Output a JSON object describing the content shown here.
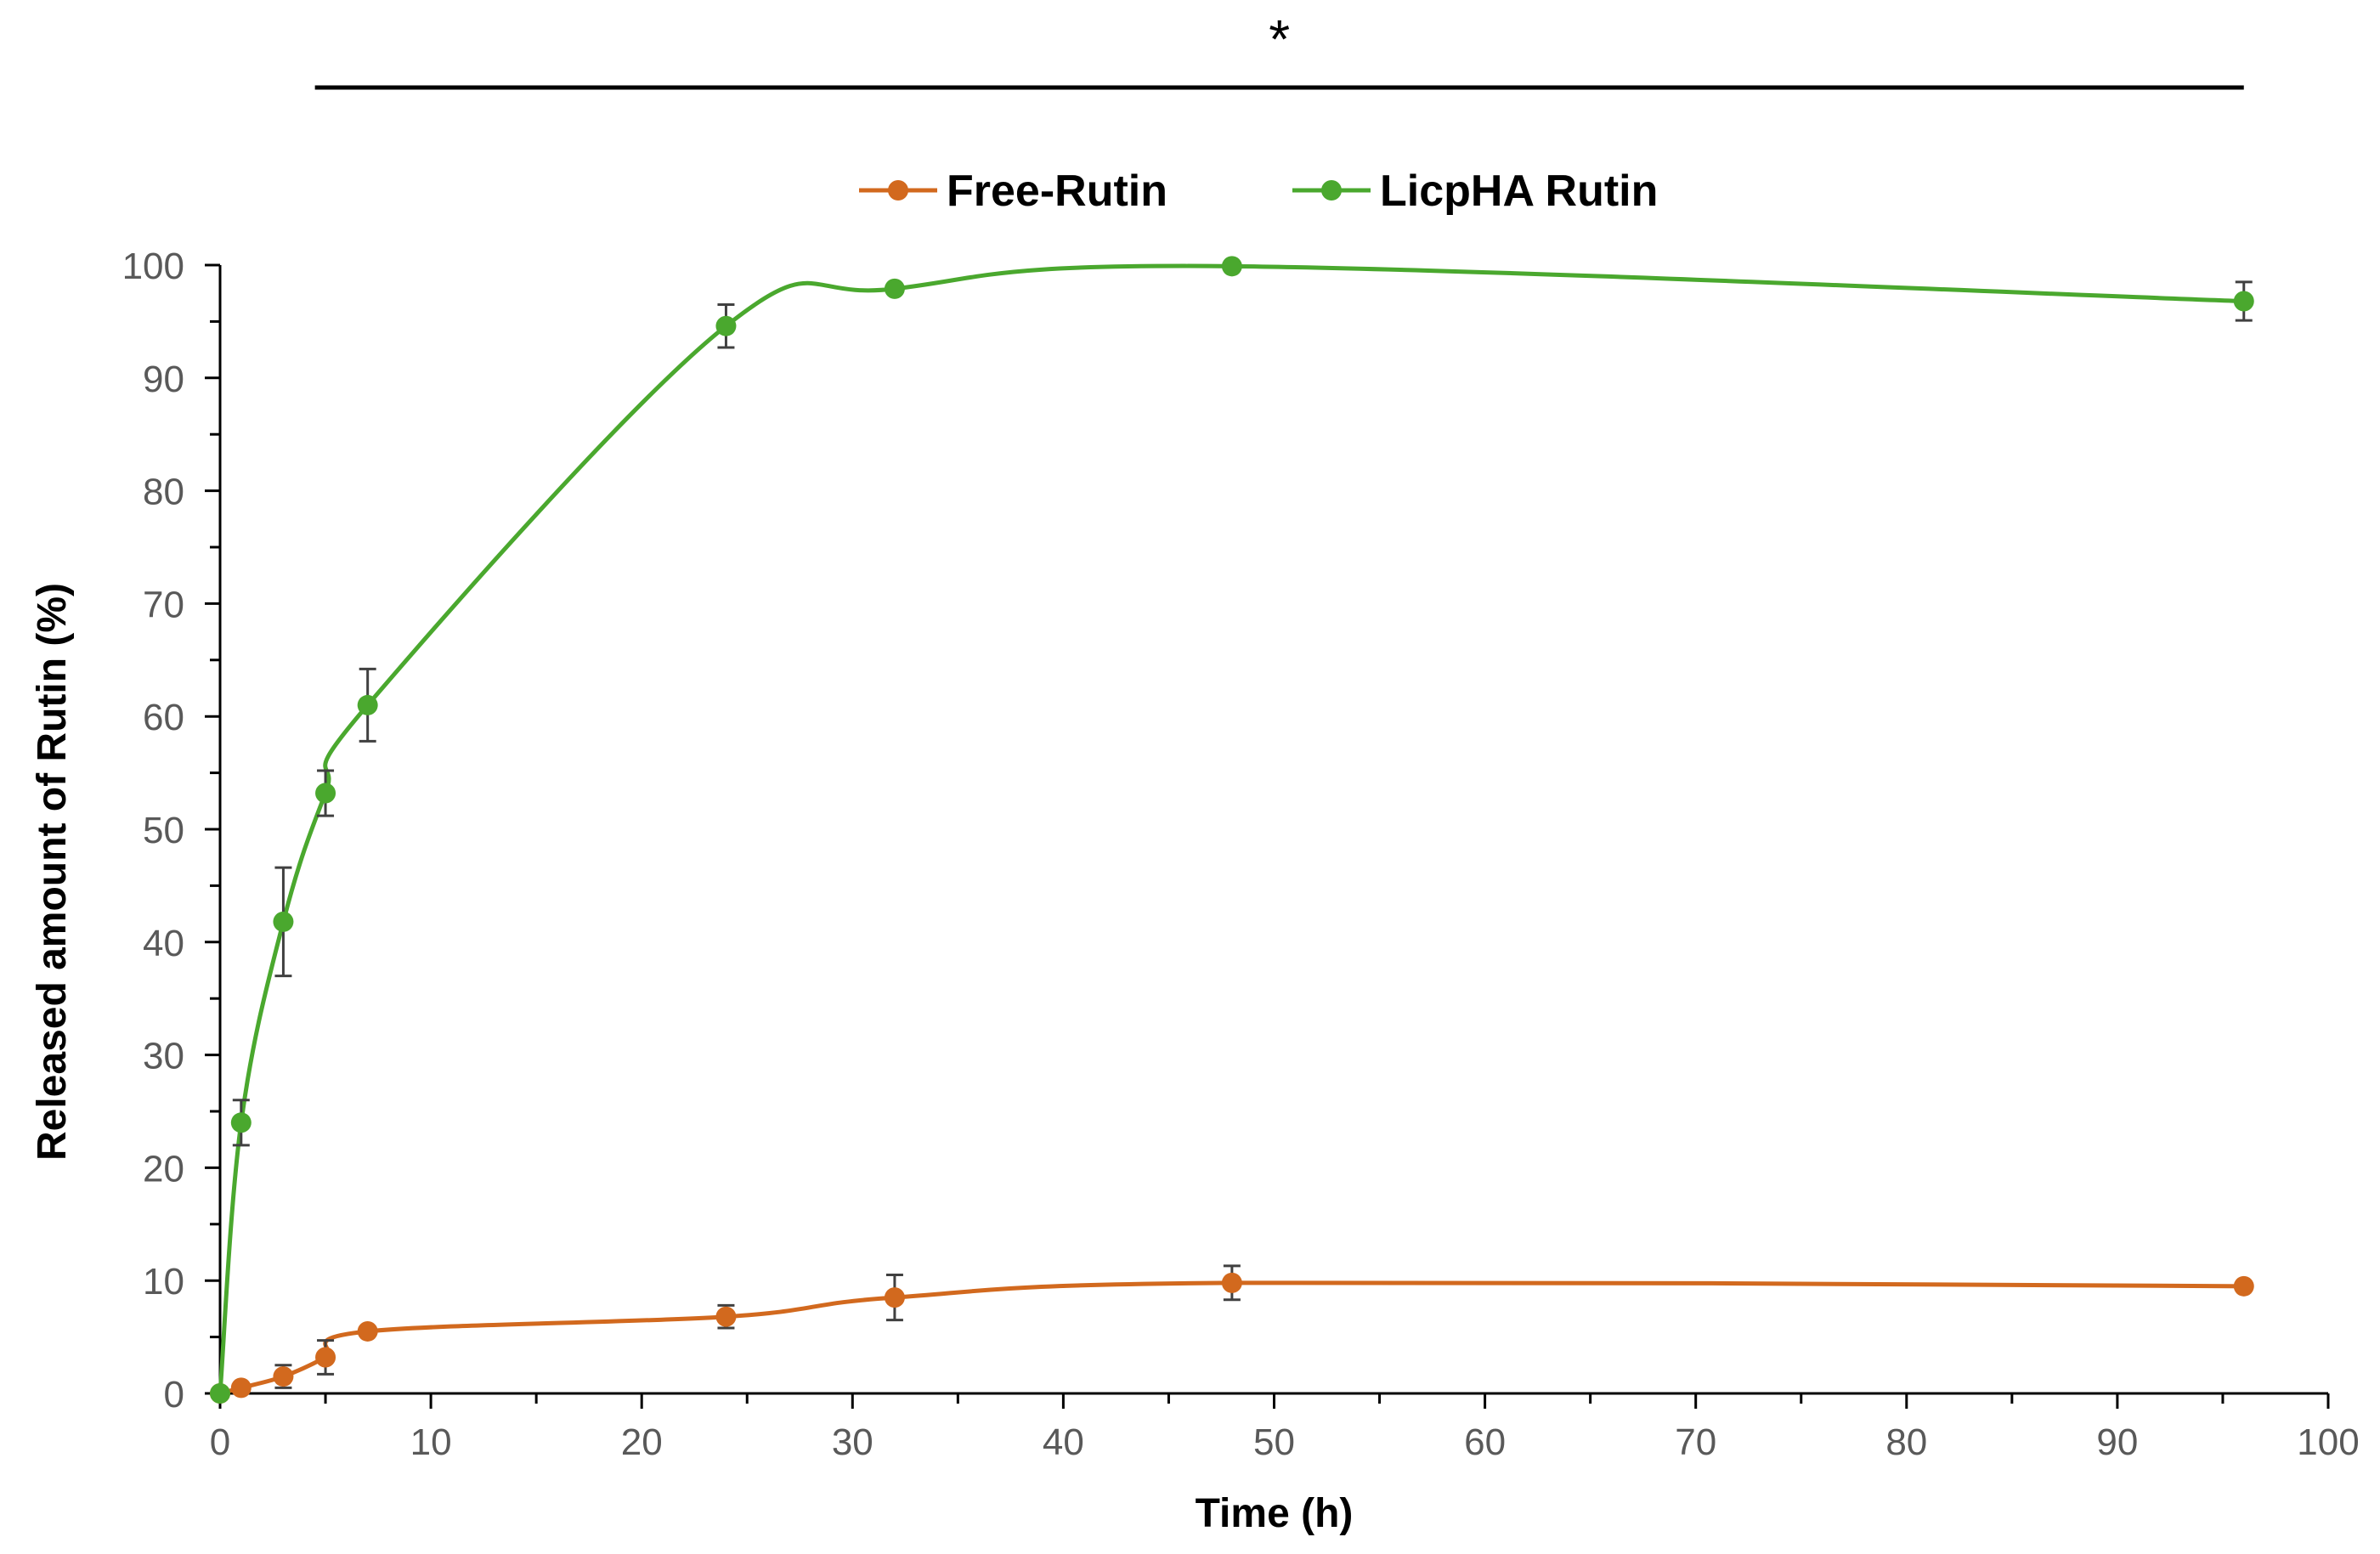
{
  "chart_data": {
    "type": "line",
    "xlabel": "Time (h)",
    "ylabel": "Released amount of Rutin (%)",
    "xlim": [
      0,
      100
    ],
    "ylim": [
      0,
      100
    ],
    "x_ticks": [
      "0",
      "10",
      "20",
      "30",
      "40",
      "50",
      "60",
      "70",
      "80",
      "90",
      "100"
    ],
    "y_ticks": [
      "0",
      "10",
      "20",
      "30",
      "40",
      "50",
      "60",
      "70",
      "80",
      "90",
      "100"
    ],
    "grid": false,
    "legend_position": "top-center",
    "significance_marker": "*",
    "significance_span_x": [
      4.5,
      96
    ],
    "series": [
      {
        "name": "Free-Rutin",
        "color": "#d2691e",
        "x": [
          0,
          1,
          3,
          5,
          7,
          24,
          32,
          48,
          96
        ],
        "y": [
          0,
          0.5,
          1.5,
          3.2,
          5.5,
          6.8,
          8.5,
          9.8,
          9.5
        ],
        "error": [
          0,
          0,
          1.0,
          1.5,
          0,
          1.0,
          2.0,
          1.5,
          0
        ]
      },
      {
        "name": "LicpHA Rutin",
        "color": "#4aa82e",
        "x": [
          0,
          1,
          3,
          5,
          7,
          24,
          32,
          48,
          96
        ],
        "y": [
          0,
          24,
          41.8,
          53.2,
          61,
          94.6,
          97.9,
          99.9,
          96.8
        ],
        "error": [
          0,
          2.0,
          4.8,
          2.0,
          3.2,
          1.9,
          0,
          0,
          1.7
        ]
      }
    ]
  }
}
